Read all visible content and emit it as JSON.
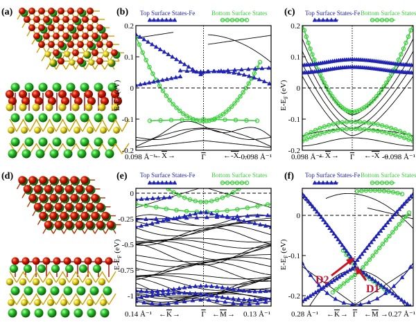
{
  "figure": {
    "panel_labels": [
      "(a)",
      "(b)",
      "(c)",
      "(d)",
      "(e)",
      "(f)"
    ],
    "legend": {
      "top_states": "Top Surface States-Fe",
      "bottom_states": "Bottom Surface States"
    },
    "ylabel": "E-E",
    "ylabel_sub": "F",
    "ylabel_unit": " (eV)",
    "annotations": [
      "D2",
      "D1"
    ],
    "colors": {
      "top_states": "#1f23b8",
      "bottom_states": "#3ed13e",
      "bands": "#000000",
      "fe_atom": "#cc1100",
      "se_atom": "#e0d21a",
      "bi_atom": "#22bb22",
      "arrow": "#cc1122"
    }
  },
  "chart_data": [
    {
      "panel": "(b)",
      "type": "line",
      "ylim": [
        -0.2,
        0.2
      ],
      "yticks": [
        "0.2",
        "0.1",
        "0",
        "-0.1",
        "-0.2"
      ],
      "xticks": [
        "0.098 Å⁻¹",
        "Γ",
        "-0.098 Å⁻¹"
      ],
      "xdirs": [
        "X",
        "-X"
      ],
      "fermi_level": 0
    },
    {
      "panel": "(c)",
      "type": "line",
      "ylim": [
        -0.2,
        0.2
      ],
      "yticks": [
        "0.2",
        "0.1",
        "0",
        "-0.1",
        "-0.2"
      ],
      "xticks": [
        "0.098 Å⁻¹",
        "Γ",
        "-0.098 Å⁻¹"
      ],
      "xdirs": [
        "X",
        "-X"
      ],
      "fermi_level": 0
    },
    {
      "panel": "(e)",
      "type": "line",
      "ylim": [
        -1.1,
        0.05
      ],
      "yticks": [
        "0",
        "-0.25",
        "-0.5",
        "-0.75",
        "-1"
      ],
      "xticks": [
        "0.14 Å⁻¹",
        "Γ",
        "0.13 Å⁻¹"
      ],
      "xdirs": [
        "K",
        "M"
      ],
      "fermi_level": 0
    },
    {
      "panel": "(f)",
      "type": "line",
      "ylim": [
        -0.245,
        0.05
      ],
      "yticks": [
        "0",
        "-0.1",
        "-0.2"
      ],
      "xticks": [
        "0.28 Å⁻¹",
        "Γ",
        "0.27 Å⁻¹"
      ],
      "xdirs": [
        "K",
        "M"
      ],
      "fermi_level": 0
    }
  ]
}
